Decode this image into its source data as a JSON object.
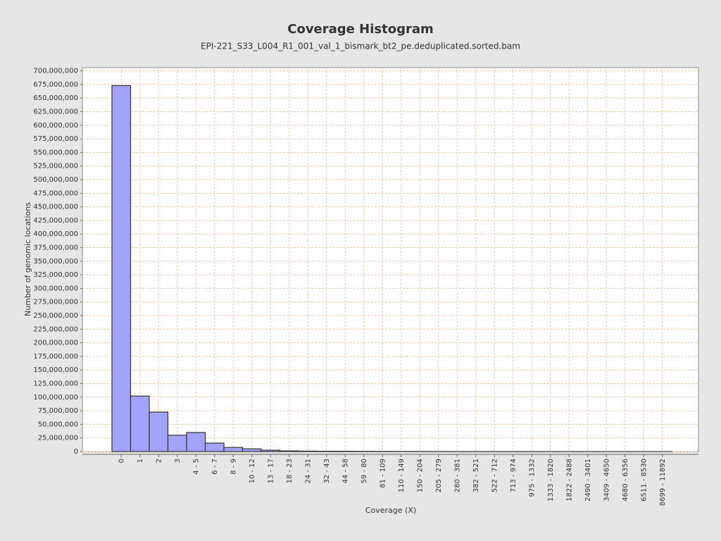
{
  "chart_data": {
    "type": "bar",
    "title": "Coverage Histogram",
    "subtitle": "EPI-221_S33_L004_R1_001_val_1_bismark_bt2_pe.deduplicated.sorted.bam",
    "x_label": "Coverage (X)",
    "y_label": "Number of genomic locations",
    "categories": [
      "0",
      "1",
      "2",
      "3",
      "4 - 5",
      "6 - 7",
      "8 - 9",
      "10 - 12",
      "13 - 17",
      "18 - 23",
      "24 - 31",
      "32 - 43",
      "44 - 58",
      "59 - 80",
      "81 - 109",
      "110 - 149",
      "150 - 204",
      "205 - 279",
      "280 - 381",
      "382 - 521",
      "522 - 712",
      "713 - 974",
      "975 - 1332",
      "1333 - 1820",
      "1822 - 2488",
      "2490 - 3401",
      "3409 - 4650",
      "4680 - 6356",
      "6511 - 8530",
      "8699 - 11892"
    ],
    "values": [
      673000000,
      102000000,
      72500000,
      30000000,
      35000000,
      15500000,
      7500000,
      5000000,
      2500000,
      1200000,
      800000,
      600000,
      500000,
      400000,
      300000,
      200000,
      150000,
      100000,
      80000,
      60000,
      50000,
      40000,
      30000,
      25000,
      20000,
      15000,
      10000,
      8000,
      5000,
      3000
    ],
    "color": "#a3a3fb",
    "ylim": [
      0,
      706000000
    ],
    "yticks": [
      {
        "value": 0,
        "label": "0"
      },
      {
        "value": 25000000,
        "label": "25,000,000"
      },
      {
        "value": 50000000,
        "label": "50,000,000"
      },
      {
        "value": 75000000,
        "label": "75,000,000"
      },
      {
        "value": 100000000,
        "label": "100,000,000"
      },
      {
        "value": 125000000,
        "label": "125,000,000"
      },
      {
        "value": 150000000,
        "label": "150,000,000"
      },
      {
        "value": 175000000,
        "label": "175,000,000"
      },
      {
        "value": 200000000,
        "label": "200,000,000"
      },
      {
        "value": 225000000,
        "label": "225,000,000"
      },
      {
        "value": 250000000,
        "label": "250,000,000"
      },
      {
        "value": 275000000,
        "label": "275,000,000"
      },
      {
        "value": 300000000,
        "label": "300,000,000"
      },
      {
        "value": 325000000,
        "label": "325,000,000"
      },
      {
        "value": 350000000,
        "label": "350,000,000"
      },
      {
        "value": 375000000,
        "label": "375,000,000"
      },
      {
        "value": 400000000,
        "label": "400,000,000"
      },
      {
        "value": 425000000,
        "label": "425,000,000"
      },
      {
        "value": 450000000,
        "label": "450,000,000"
      },
      {
        "value": 475000000,
        "label": "475,000,000"
      },
      {
        "value": 500000000,
        "label": "500,000,000"
      },
      {
        "value": 525000000,
        "label": "525,000,000"
      },
      {
        "value": 550000000,
        "label": "550,000,000"
      },
      {
        "value": 575000000,
        "label": "575,000,000"
      },
      {
        "value": 600000000,
        "label": "600,000,000"
      },
      {
        "value": 625000000,
        "label": "625,000,000"
      },
      {
        "value": 650000000,
        "label": "650,000,000"
      },
      {
        "value": 675000000,
        "label": "675,000,000"
      },
      {
        "value": 700000000,
        "label": "700,000,000"
      }
    ],
    "grid": true
  }
}
